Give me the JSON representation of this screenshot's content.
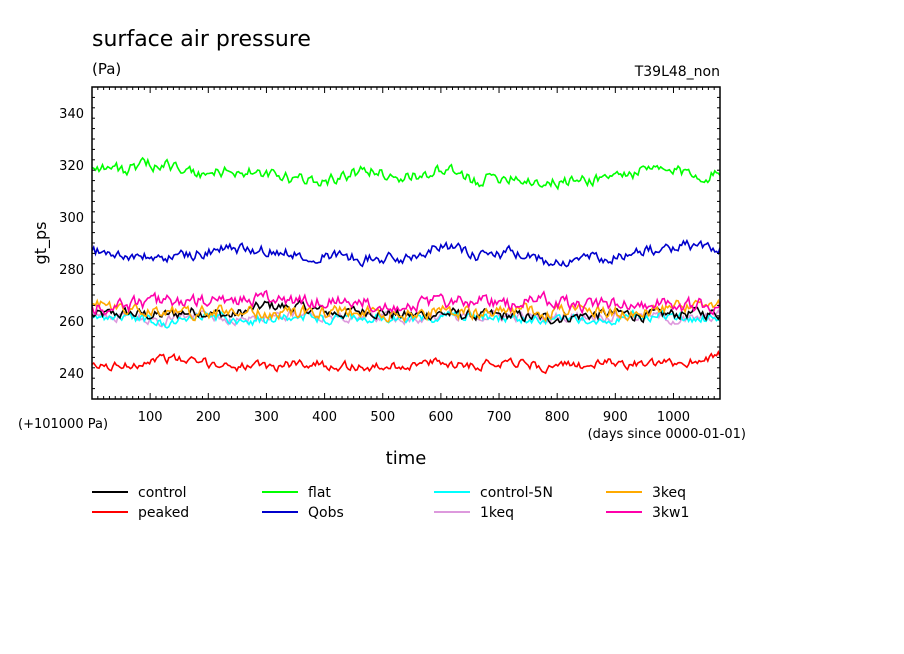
{
  "chart_data": {
    "type": "line",
    "title": "surface air pressure",
    "units": "(Pa)",
    "run_label": "T39L48_non",
    "ylabel": "gt_ps",
    "xlabel": "time",
    "x_unit_note": "(days since 0000-01-01)",
    "y_offset_note": "(+101000 Pa)",
    "xlim": [
      0,
      1080
    ],
    "ylim": [
      230,
      350
    ],
    "x_ticks": [
      100,
      200,
      300,
      400,
      500,
      600,
      700,
      800,
      900,
      1000
    ],
    "y_ticks": [
      240,
      260,
      280,
      300,
      320,
      340
    ],
    "x": [
      0,
      60,
      120,
      180,
      240,
      300,
      360,
      420,
      480,
      540,
      600,
      660,
      720,
      780,
      840,
      900,
      960,
      1020,
      1080
    ],
    "series": [
      {
        "name": "control",
        "color": "#000000",
        "values": [
          262,
          263,
          262,
          264,
          262,
          266,
          265,
          263,
          264,
          262,
          263,
          262,
          262,
          261,
          262,
          263,
          262,
          263,
          263
        ]
      },
      {
        "name": "peaked",
        "color": "#ff0000",
        "values": [
          242,
          243,
          246,
          244,
          243,
          242,
          244,
          243,
          242,
          243,
          244,
          243,
          245,
          242,
          243,
          244,
          243,
          244,
          247
        ]
      },
      {
        "name": "flat",
        "color": "#00ff00",
        "values": [
          320,
          318,
          321,
          316,
          318,
          316,
          314,
          315,
          318,
          315,
          318,
          314,
          316,
          313,
          314,
          316,
          318,
          317,
          316
        ]
      },
      {
        "name": "Qobs",
        "color": "#0000cc",
        "values": [
          287,
          285,
          284,
          286,
          288,
          287,
          286,
          285,
          284,
          284,
          290,
          285,
          286,
          283,
          284,
          285,
          287,
          289,
          288
        ]
      },
      {
        "name": "control-5N",
        "color": "#00ffff",
        "values": [
          261,
          262,
          259,
          262,
          261,
          260,
          262,
          261,
          261,
          260,
          262,
          261,
          261,
          260,
          261,
          261,
          262,
          261,
          261
        ]
      },
      {
        "name": "1keq",
        "color": "#dd99dd",
        "values": [
          262,
          262,
          260,
          263,
          261,
          261,
          263,
          262,
          262,
          261,
          262,
          262,
          262,
          261,
          262,
          262,
          262,
          260,
          262
        ]
      },
      {
        "name": "3keq",
        "color": "#ffaa00",
        "values": [
          267,
          264,
          264,
          263,
          264,
          263,
          263,
          264,
          263,
          262,
          264,
          263,
          264,
          263,
          264,
          263,
          264,
          266,
          266
        ]
      },
      {
        "name": "3kw1",
        "color": "#ff00aa",
        "values": [
          265,
          266,
          268,
          267,
          268,
          269,
          267,
          268,
          267,
          266,
          267,
          268,
          266,
          268,
          266,
          267,
          267,
          266,
          266
        ]
      }
    ]
  }
}
